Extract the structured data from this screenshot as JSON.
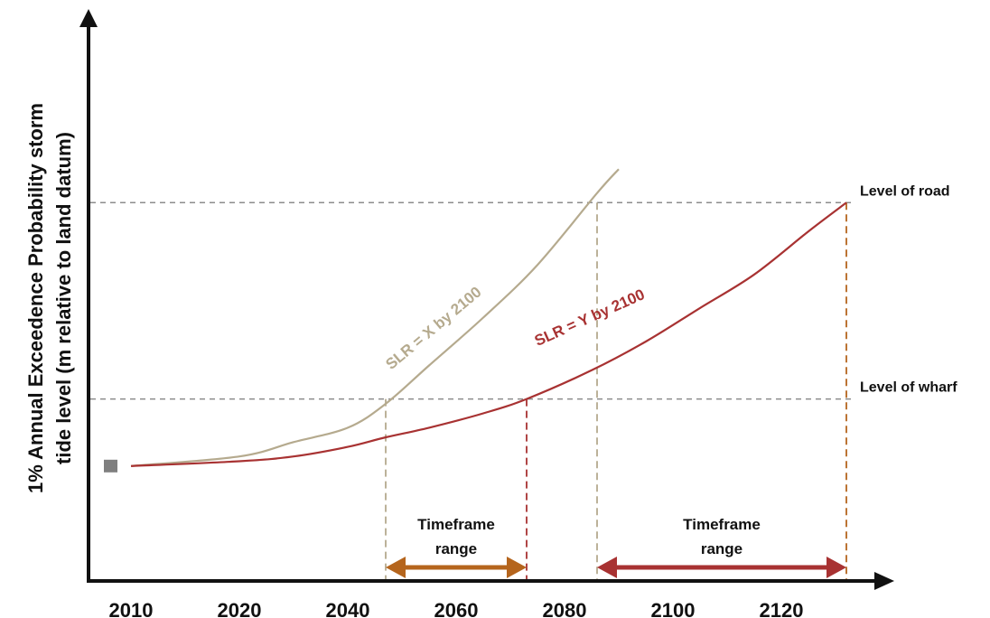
{
  "chart_data": {
    "type": "line",
    "ylabel_line1": "1% Annual Exceedence Probability storm",
    "ylabel_line2": "tide level (m relative to land datum)",
    "x_ticks": [
      "2010",
      "2020",
      "2040",
      "2060",
      "2080",
      "2100",
      "2120"
    ],
    "series": [
      {
        "name": "SLR = X by 2100",
        "color": "#b5aa8e",
        "x": [
          2010,
          2020,
          2030,
          2040,
          2047,
          2055,
          2065,
          2075,
          2086,
          2090
        ],
        "y": [
          0.24,
          0.26,
          0.29,
          0.32,
          0.37,
          0.45,
          0.55,
          0.66,
          0.81,
          0.86
        ]
      },
      {
        "name": "SLR = Y by 2100",
        "color": "#a83232",
        "x": [
          2010,
          2020,
          2030,
          2040,
          2047,
          2055,
          2065,
          2073,
          2085,
          2095,
          2105,
          2115,
          2125,
          2132
        ],
        "y": [
          0.24,
          0.25,
          0.26,
          0.28,
          0.3,
          0.32,
          0.35,
          0.38,
          0.44,
          0.5,
          0.57,
          0.64,
          0.73,
          0.79
        ]
      }
    ],
    "reference_lines": [
      {
        "label": "Level of road",
        "y": 0.79
      },
      {
        "label": "Level of wharf",
        "y": 0.38
      }
    ],
    "marker_start": {
      "x": 2010,
      "y": 0.24,
      "color": "#7f7f7f"
    },
    "timeframes": [
      {
        "line1": "Timeframe",
        "line2": "range",
        "x_from": 2047,
        "x_to": 2073,
        "color": "#b5651d"
      },
      {
        "line1": "Timeframe",
        "line2": "range",
        "x_from": 2086,
        "x_to": 2132,
        "color": "#a83232"
      }
    ],
    "grid": false,
    "legend": "none"
  }
}
